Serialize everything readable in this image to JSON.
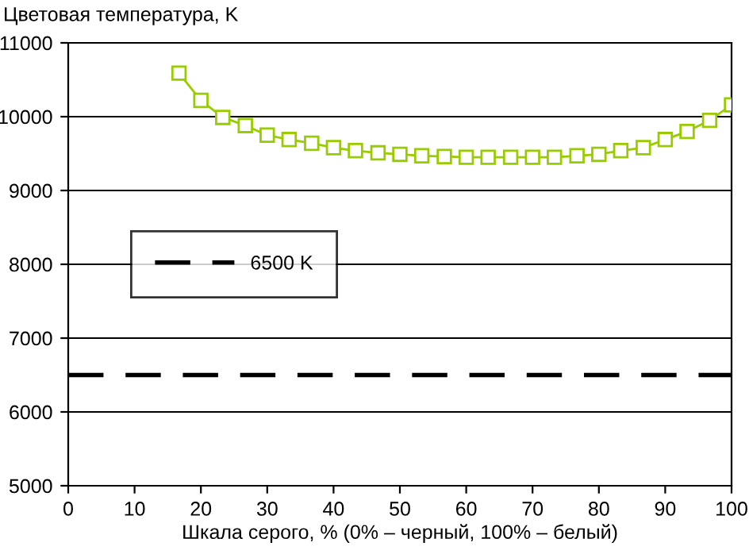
{
  "chart_data": {
    "type": "line",
    "ylabel": "Цветовая температура, K",
    "xlabel": "Шкала серого, % (0% – черный, 100% – белый)",
    "x": [
      16.7,
      20,
      23.3,
      26.7,
      30,
      33.3,
      36.7,
      40,
      43.3,
      46.7,
      50,
      53.3,
      56.7,
      60,
      63.3,
      66.7,
      70,
      73.3,
      76.7,
      80,
      83.3,
      86.7,
      90,
      93.3,
      96.7,
      100
    ],
    "series": [
      {
        "color": "#99cc00",
        "values": [
          10590,
          10220,
          9990,
          9880,
          9750,
          9690,
          9640,
          9580,
          9540,
          9510,
          9490,
          9470,
          9460,
          9450,
          9450,
          9450,
          9450,
          9450,
          9470,
          9490,
          9540,
          9580,
          9690,
          9800,
          9950,
          10160
        ]
      }
    ],
    "xlim": [
      0,
      100
    ],
    "xticks": [
      0,
      10,
      20,
      30,
      40,
      50,
      60,
      70,
      80,
      90,
      100
    ],
    "ylim": [
      5000,
      11000
    ],
    "yticks": [
      5000,
      6000,
      7000,
      8000,
      9000,
      10000,
      11000
    ],
    "ref_lines": [
      {
        "axis": "y",
        "value": 6500,
        "label": "6500 K",
        "color": "#000000",
        "line_style": "dashed"
      }
    ],
    "grid": "y",
    "legend": "center left",
    "marker": "square",
    "line_style": "solid"
  }
}
